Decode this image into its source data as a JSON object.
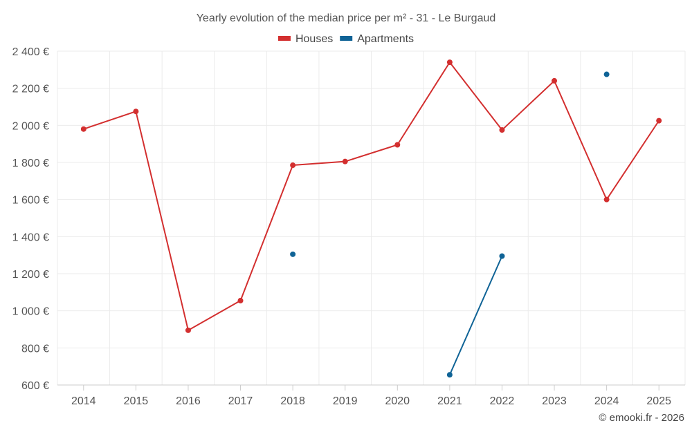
{
  "chart_data": {
    "type": "line",
    "title": "Yearly evolution of the median price per m² - 31 - Le Burgaud",
    "categories": [
      "2014",
      "2015",
      "2016",
      "2017",
      "2018",
      "2019",
      "2020",
      "2021",
      "2022",
      "2023",
      "2024",
      "2025"
    ],
    "ylim": [
      600,
      2400
    ],
    "yticks": [
      600,
      800,
      1000,
      1200,
      1400,
      1600,
      1800,
      2000,
      2200,
      2400
    ],
    "ytick_labels": [
      "600 €",
      "800 €",
      "1 000 €",
      "1 200 €",
      "1 400 €",
      "1 600 €",
      "1 800 €",
      "2 000 €",
      "2 200 €",
      "2 400 €"
    ],
    "grid": true,
    "legend_position": "top-center",
    "series": [
      {
        "name": "Houses",
        "color": "#d32f2f",
        "values": [
          1980,
          2075,
          895,
          1055,
          1785,
          1805,
          1895,
          2340,
          1975,
          2240,
          1600,
          2025
        ]
      },
      {
        "name": "Apartments",
        "color": "#0f6396",
        "values": [
          null,
          null,
          null,
          null,
          1305,
          null,
          null,
          655,
          1295,
          null,
          2275,
          null
        ]
      }
    ],
    "credit": "© emooki.fr - 2026"
  }
}
